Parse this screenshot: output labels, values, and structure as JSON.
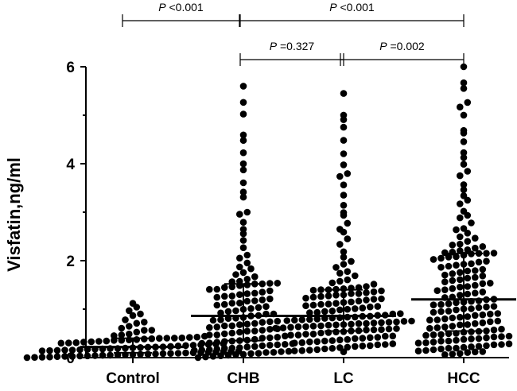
{
  "chart_data": {
    "type": "scatter",
    "subtype": "dot-plot with median and interquartile range",
    "ylabel": "Visfatin,ng/ml",
    "xlabel": "",
    "ylim": [
      0,
      6
    ],
    "y_ticks": [
      "0",
      "2",
      "4",
      "6"
    ],
    "categories": [
      "Control",
      "CHB",
      "LC",
      "HCC"
    ],
    "groups": [
      {
        "name": "Control",
        "n": 90,
        "median": 0.22,
        "q1": 0.1,
        "q3": 0.4,
        "min": 0.0,
        "max": 1.12,
        "seed": 11
      },
      {
        "name": "CHB",
        "n": 130,
        "median": 0.86,
        "q1": 0.35,
        "q3": 1.52,
        "min": 0.0,
        "max": 5.6,
        "seed": 23
      },
      {
        "name": "LC",
        "n": 150,
        "median": 0.86,
        "q1": 0.55,
        "q3": 1.4,
        "min": 0.12,
        "max": 5.45,
        "seed": 37
      },
      {
        "name": "HCC",
        "n": 160,
        "median": 1.2,
        "q1": 0.55,
        "q3": 2.15,
        "min": 0.06,
        "max": 6.0,
        "seed": 53
      }
    ],
    "comparisons": [
      {
        "from": "Control",
        "to": "CHB",
        "label_p": "P",
        "label_value": " <0.001"
      },
      {
        "from": "CHB",
        "to": "HCC",
        "label_p": "P",
        "label_value": " <0.001"
      },
      {
        "from": "CHB",
        "to": "LC",
        "label_p": "P",
        "label_value": " =0.327"
      },
      {
        "from": "LC",
        "to": "HCC",
        "label_p": "P",
        "label_value": " =0.002"
      }
    ]
  }
}
